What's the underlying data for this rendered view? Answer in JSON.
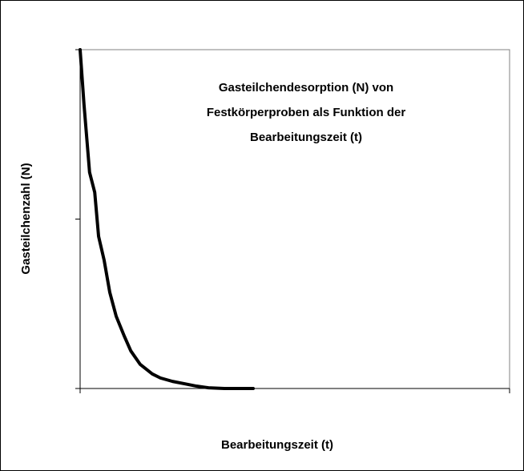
{
  "chart_data": {
    "type": "line",
    "title": [
      "Gasteilchendesorption (N) von",
      "Festkörperproben als Funktion der",
      "Bearbeitungszeit (t)"
    ],
    "x_label": "Bearbeitungszeit (t)",
    "y_label": "Gasteilchenzahl (N)",
    "series": [
      {
        "color": "#000000",
        "x": [
          0,
          0.9,
          2.2,
          3.4,
          4.3,
          5.6,
          6.9,
          8.4,
          10.3,
          11.8,
          14.0,
          16.8,
          18.7,
          21.5,
          24.3,
          27.1,
          29.9,
          33.6,
          40.3
        ],
        "values": [
          100,
          83.9,
          63.8,
          57.9,
          44.9,
          37.8,
          28.4,
          21.3,
          15.4,
          11.1,
          7.1,
          4.3,
          3.1,
          2.1,
          1.4,
          0.7,
          0.2,
          0,
          0
        ]
      }
    ],
    "xlim": [
      0,
      100
    ],
    "xticks": [
      0,
      100
    ],
    "ylim": [
      0,
      100
    ],
    "yticks": [
      0,
      50,
      100
    ],
    "grid": false
  }
}
